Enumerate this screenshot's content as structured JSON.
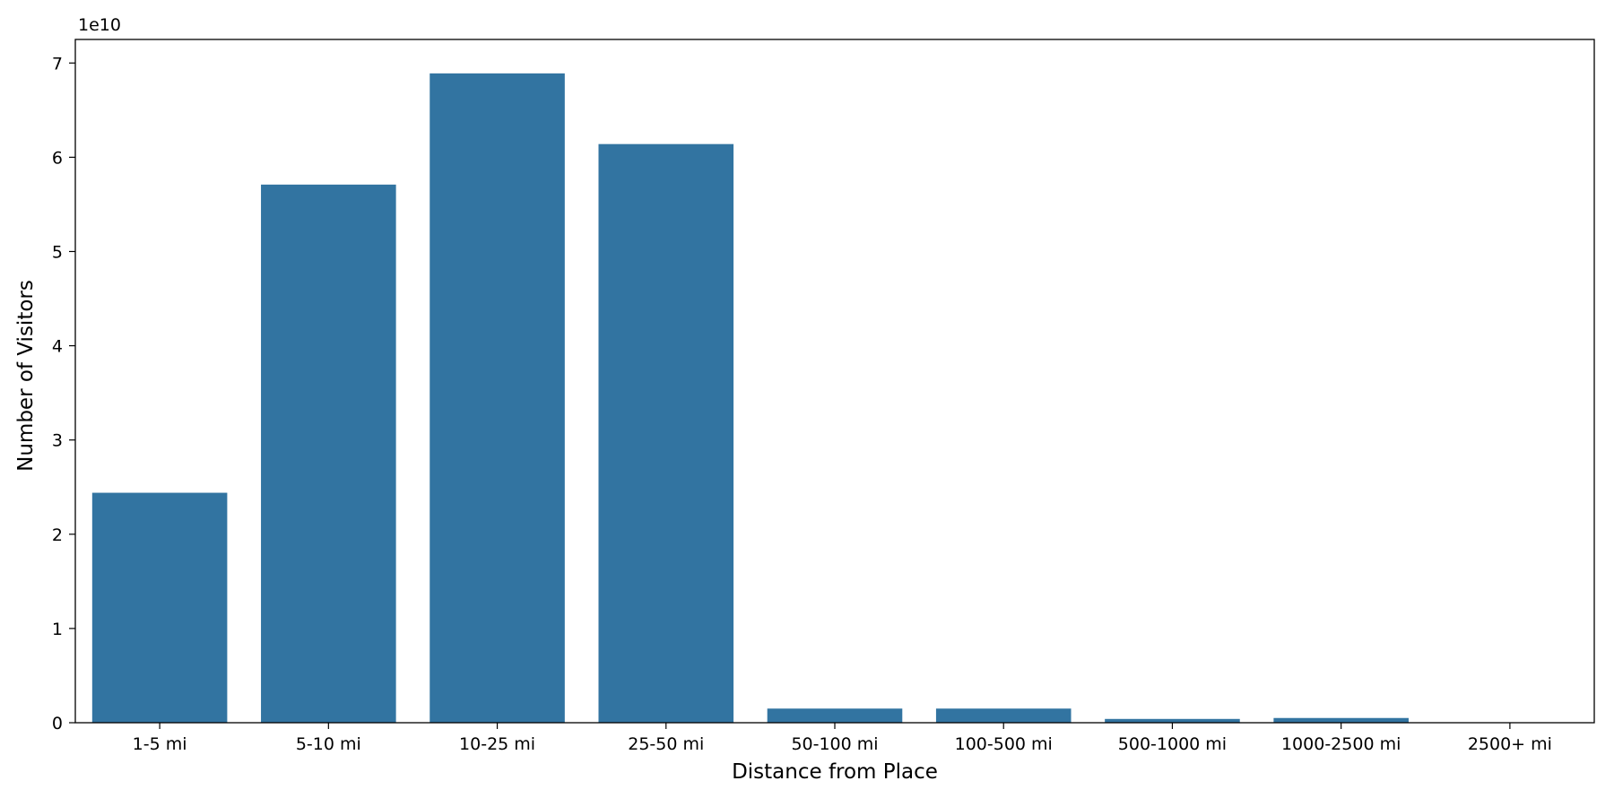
{
  "chart_data": {
    "type": "bar",
    "title": "",
    "xlabel": "Distance from Place",
    "ylabel": "Number of Visitors",
    "y_offset_label": "1e10",
    "categories": [
      "1-5 mi",
      "5-10 mi",
      "10-25 mi",
      "25-50 mi",
      "50-100 mi",
      "100-500 mi",
      "500-1000 mi",
      "1000-2500 mi",
      "2500+ mi"
    ],
    "values": [
      24400000000,
      57100000000,
      68900000000,
      61400000000,
      1500000000,
      1500000000,
      400000000,
      500000000,
      0
    ],
    "ylim": [
      0,
      72500000000
    ],
    "yticks": [
      0,
      10000000000,
      20000000000,
      30000000000,
      40000000000,
      50000000000,
      60000000000,
      70000000000
    ],
    "ytick_labels": [
      "0",
      "1",
      "2",
      "3",
      "4",
      "5",
      "6",
      "7"
    ],
    "bar_color": "#3274a1",
    "grid": false,
    "legend": "none"
  }
}
